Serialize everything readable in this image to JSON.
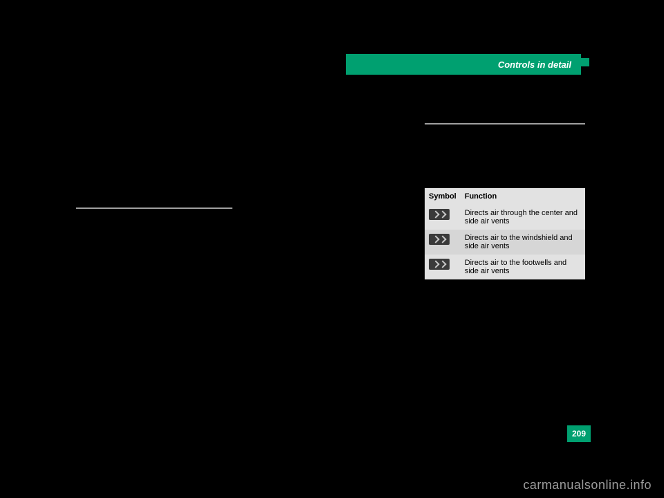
{
  "header": {
    "title": "Controls in detail"
  },
  "page_number": "209",
  "watermark": "carmanualsonline.info",
  "symbol_table": {
    "header": {
      "col1": "Symbol",
      "col2": "Function"
    },
    "rows": [
      {
        "func": "Directs air through the center and side air vents"
      },
      {
        "func": "Directs air to the windshield and side air vents"
      },
      {
        "func": "Directs air to the footwells and side air vents"
      }
    ]
  },
  "colors": {
    "accent": "#00a070",
    "page_bg": "#000000",
    "table_bg1": "#e2e2e2",
    "table_bg2": "#d6d6d6",
    "divider": "#a0a0a0",
    "watermark": "#9c9c9c"
  }
}
